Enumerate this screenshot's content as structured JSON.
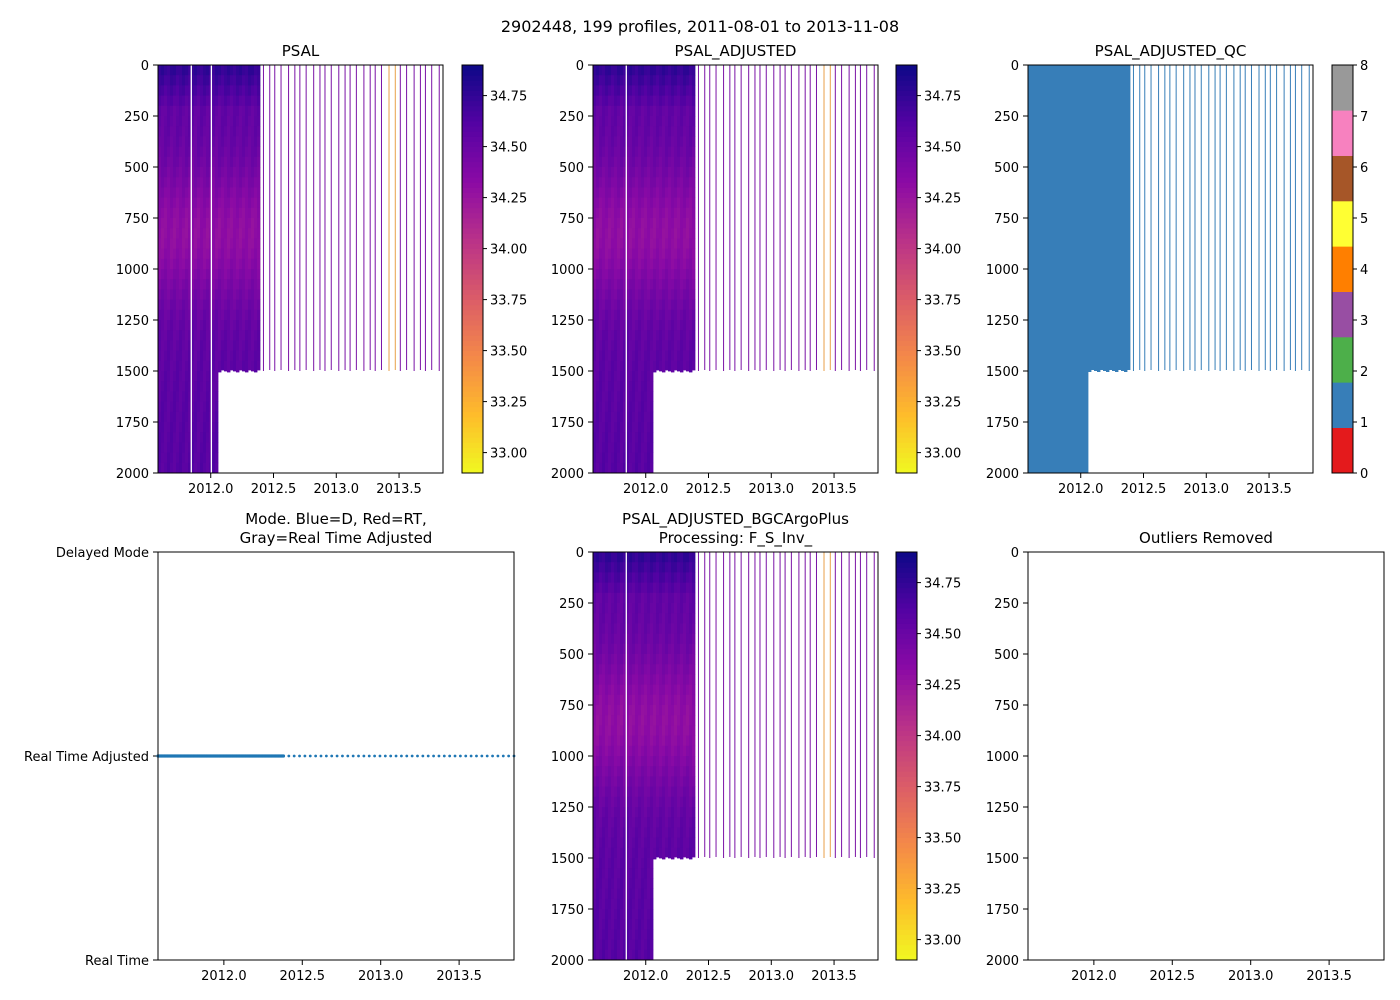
{
  "suptitle": "2902448, 199 profiles, 2011-08-01 to 2013-11-08",
  "chart_data": [
    {
      "id": "psal",
      "type": "heatmap",
      "title": "PSAL",
      "x_range": [
        2011.58,
        2013.85
      ],
      "x_ticks": [
        2012.0,
        2012.5,
        2013.0,
        2013.5
      ],
      "x_tick_labels": [
        "2012.0",
        "2012.5",
        "2013.0",
        "2013.5"
      ],
      "y_range": [
        2000,
        0
      ],
      "y_ticks": [
        0,
        250,
        500,
        750,
        1000,
        1250,
        1500,
        1750,
        2000
      ],
      "y_tick_labels": [
        "0",
        "250",
        "500",
        "750",
        "1000",
        "1250",
        "1500",
        "1750",
        "2000"
      ],
      "colormap": "plasma_r",
      "colorbar_range": [
        32.9,
        34.9
      ],
      "colorbar_ticks": [
        33.0,
        33.25,
        33.5,
        33.75,
        34.0,
        34.25,
        34.5,
        34.75
      ],
      "colorbar_tick_labels": [
        "33.00",
        "33.25",
        "33.50",
        "33.75",
        "34.00",
        "34.25",
        "34.50",
        "34.75"
      ],
      "dense_until": 2012.38,
      "deep_until": 2012.05,
      "shallow_max_depth": 1500,
      "gaps": [
        2011.84,
        2012.0
      ],
      "profile_times": [
        2012.42,
        2012.47,
        2012.51,
        2012.56,
        2012.62,
        2012.67,
        2012.71,
        2012.76,
        2012.82,
        2012.87,
        2012.91,
        2012.96,
        2013.02,
        2013.07,
        2013.11,
        2013.16,
        2013.22,
        2013.27,
        2013.31,
        2013.36,
        2013.42,
        2013.47,
        2013.51,
        2013.56,
        2013.62,
        2013.67,
        2013.71,
        2013.76,
        2013.82
      ]
    },
    {
      "id": "psal-adjusted",
      "type": "heatmap",
      "title": "PSAL_ADJUSTED",
      "x_range": [
        2011.58,
        2013.85
      ],
      "x_ticks": [
        2012.0,
        2012.5,
        2013.0,
        2013.5
      ],
      "x_tick_labels": [
        "2012.0",
        "2012.5",
        "2013.0",
        "2013.5"
      ],
      "y_range": [
        2000,
        0
      ],
      "y_ticks": [
        0,
        250,
        500,
        750,
        1000,
        1250,
        1500,
        1750,
        2000
      ],
      "y_tick_labels": [
        "0",
        "250",
        "500",
        "750",
        "1000",
        "1250",
        "1500",
        "1750",
        "2000"
      ],
      "colormap": "plasma_r",
      "colorbar_range": [
        32.9,
        34.9
      ],
      "colorbar_ticks": [
        33.0,
        33.25,
        33.5,
        33.75,
        34.0,
        34.25,
        34.5,
        34.75
      ],
      "colorbar_tick_labels": [
        "33.00",
        "33.25",
        "33.50",
        "33.75",
        "34.00",
        "34.25",
        "34.50",
        "34.75"
      ],
      "dense_until": 2012.38,
      "deep_until": 2012.05,
      "shallow_max_depth": 1500,
      "gaps": [
        2011.84
      ],
      "profile_times": [
        2012.42,
        2012.47,
        2012.51,
        2012.56,
        2012.62,
        2012.67,
        2012.71,
        2012.76,
        2012.82,
        2012.87,
        2012.91,
        2012.96,
        2013.02,
        2013.07,
        2013.11,
        2013.16,
        2013.22,
        2013.27,
        2013.31,
        2013.36,
        2013.42,
        2013.47,
        2013.51,
        2013.56,
        2013.62,
        2013.67,
        2013.71,
        2013.76,
        2013.82
      ]
    },
    {
      "id": "psal-adjusted-qc",
      "type": "heatmap",
      "title": "PSAL_ADJUSTED_QC",
      "x_range": [
        2011.58,
        2013.85
      ],
      "x_ticks": [
        2012.0,
        2012.5,
        2013.0,
        2013.5
      ],
      "x_tick_labels": [
        "2012.0",
        "2012.5",
        "2013.0",
        "2013.5"
      ],
      "y_range": [
        2000,
        0
      ],
      "y_ticks": [
        0,
        250,
        500,
        750,
        1000,
        1250,
        1500,
        1750,
        2000
      ],
      "y_tick_labels": [
        "0",
        "250",
        "500",
        "750",
        "1000",
        "1250",
        "1500",
        "1750",
        "2000"
      ],
      "qc_value": 1,
      "qc_colors": [
        "#e41a1c",
        "#377eb8",
        "#4daf4a",
        "#984ea3",
        "#ff7f00",
        "#ffff33",
        "#a65628",
        "#f781bf",
        "#999999"
      ],
      "colorbar_range": [
        0,
        8
      ],
      "colorbar_ticks": [
        0,
        1,
        2,
        3,
        4,
        5,
        6,
        7,
        8
      ],
      "colorbar_tick_labels": [
        "0",
        "1",
        "2",
        "3",
        "4",
        "5",
        "6",
        "7",
        "8"
      ],
      "dense_until": 2012.38,
      "deep_until": 2012.05,
      "shallow_max_depth": 1500,
      "profile_times": [
        2012.42,
        2012.47,
        2012.51,
        2012.56,
        2012.62,
        2012.67,
        2012.71,
        2012.76,
        2012.82,
        2012.87,
        2012.91,
        2012.96,
        2013.02,
        2013.07,
        2013.11,
        2013.16,
        2013.22,
        2013.27,
        2013.31,
        2013.36,
        2013.42,
        2013.47,
        2013.51,
        2013.56,
        2013.62,
        2013.67,
        2013.71,
        2013.76,
        2013.82
      ]
    },
    {
      "id": "mode",
      "type": "scatter",
      "title": [
        "Mode. Blue=D, Red=RT,",
        "Gray=Real Time Adjusted"
      ],
      "x_range": [
        2011.58,
        2013.85
      ],
      "x_ticks": [
        2012.0,
        2012.5,
        2013.0,
        2013.5
      ],
      "x_tick_labels": [
        "2012.0",
        "2012.5",
        "2013.0",
        "2013.5"
      ],
      "y_categories": [
        "Real Time",
        "Real Time Adjusted",
        "Delayed Mode"
      ],
      "y_value": "Real Time Adjusted",
      "marker_color": "#1f77b4",
      "dense_range": [
        2011.58,
        2012.38
      ],
      "sparse_range": [
        2012.38,
        2013.85
      ],
      "dense_points": 165,
      "sparse_points": 44
    },
    {
      "id": "psal-bgcargoplus",
      "type": "heatmap",
      "title": [
        "PSAL_ADJUSTED_BGCArgoPlus",
        "Processing: F_S_Inv_"
      ],
      "x_range": [
        2011.58,
        2013.85
      ],
      "x_ticks": [
        2012.0,
        2012.5,
        2013.0,
        2013.5
      ],
      "x_tick_labels": [
        "2012.0",
        "2012.5",
        "2013.0",
        "2013.5"
      ],
      "y_range": [
        2000,
        0
      ],
      "y_ticks": [
        0,
        250,
        500,
        750,
        1000,
        1250,
        1500,
        1750,
        2000
      ],
      "y_tick_labels": [
        "0",
        "250",
        "500",
        "750",
        "1000",
        "1250",
        "1500",
        "1750",
        "2000"
      ],
      "colormap": "plasma_r",
      "colorbar_range": [
        32.9,
        34.9
      ],
      "colorbar_ticks": [
        33.0,
        33.25,
        33.5,
        33.75,
        34.0,
        34.25,
        34.5,
        34.75
      ],
      "colorbar_tick_labels": [
        "33.00",
        "33.25",
        "33.50",
        "33.75",
        "34.00",
        "34.25",
        "34.50",
        "34.75"
      ],
      "dense_until": 2012.38,
      "deep_until": 2012.05,
      "shallow_max_depth": 1500,
      "gaps": [
        2011.84
      ],
      "profile_times": [
        2012.42,
        2012.47,
        2012.51,
        2012.56,
        2012.62,
        2012.67,
        2012.71,
        2012.76,
        2012.82,
        2012.87,
        2012.91,
        2012.96,
        2013.02,
        2013.07,
        2013.11,
        2013.16,
        2013.22,
        2013.27,
        2013.31,
        2013.36,
        2013.42,
        2013.47,
        2013.51,
        2013.56,
        2013.62,
        2013.67,
        2013.71,
        2013.76,
        2013.82
      ]
    },
    {
      "id": "outliers",
      "type": "scatter",
      "title": "Outliers Removed",
      "x_range": [
        2011.58,
        2013.85
      ],
      "x_ticks": [
        2012.0,
        2012.5,
        2013.0,
        2013.5
      ],
      "x_tick_labels": [
        "2012.0",
        "2012.5",
        "2013.0",
        "2013.5"
      ],
      "y_range": [
        2000,
        0
      ],
      "y_ticks": [
        0,
        250,
        500,
        750,
        1000,
        1250,
        1500,
        1750,
        2000
      ],
      "y_tick_labels": [
        "0",
        "250",
        "500",
        "750",
        "1000",
        "1250",
        "1500",
        "1750",
        "2000"
      ],
      "points": []
    }
  ]
}
